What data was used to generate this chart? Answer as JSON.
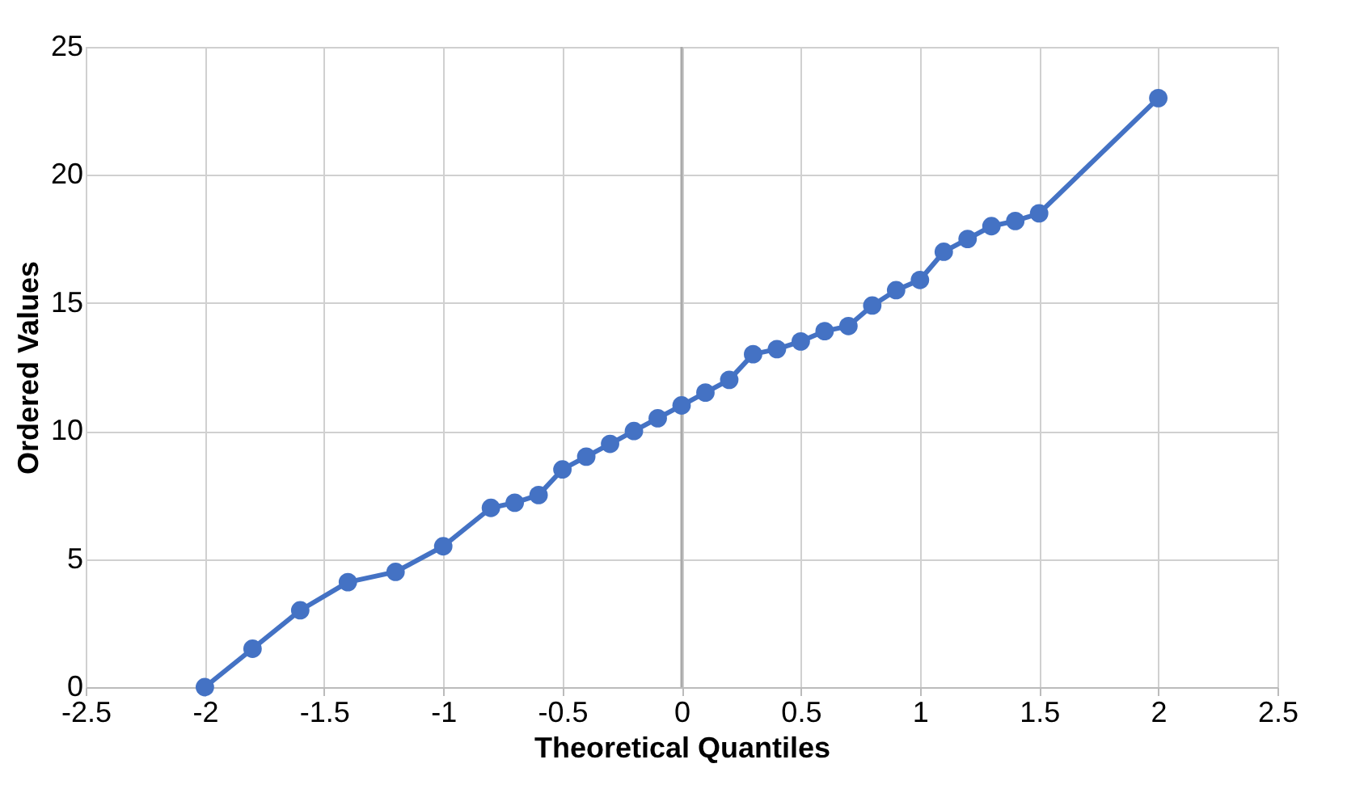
{
  "chart_data": {
    "type": "line",
    "xlabel": "Theoretical Quantiles",
    "ylabel": "Ordered Values",
    "x": [
      -2,
      -1.8,
      -1.6,
      -1.4,
      -1.2,
      -1,
      -0.8,
      -0.7,
      -0.6,
      -0.5,
      -0.4,
      -0.3,
      -0.2,
      -0.1,
      0,
      0.1,
      0.2,
      0.3,
      0.4,
      0.5,
      0.6,
      0.7,
      0.8,
      0.9,
      1,
      1.1,
      1.2,
      1.3,
      1.4,
      1.5,
      2
    ],
    "series": [
      {
        "color": "#4472c4",
        "values": [
          0,
          1.5,
          3,
          4.1,
          4.5,
          5.5,
          7,
          7.2,
          7.5,
          8.5,
          9,
          9.5,
          10,
          10.5,
          11,
          11.5,
          12,
          13,
          13.2,
          13.5,
          13.9,
          14.1,
          14.9,
          15.5,
          15.9,
          17,
          17.5,
          18,
          18.2,
          18.5,
          23
        ]
      }
    ],
    "xlim": [
      -2.5,
      2.5
    ],
    "xticks": [
      -2.5,
      -2,
      -1.5,
      -1,
      -0.5,
      0,
      0.5,
      1,
      1.5,
      2,
      2.5
    ],
    "ylim": [
      0,
      25
    ],
    "yticks": [
      0,
      5,
      10,
      15,
      20,
      25
    ],
    "grid": true,
    "marker": "circle",
    "line_style": "solid"
  }
}
